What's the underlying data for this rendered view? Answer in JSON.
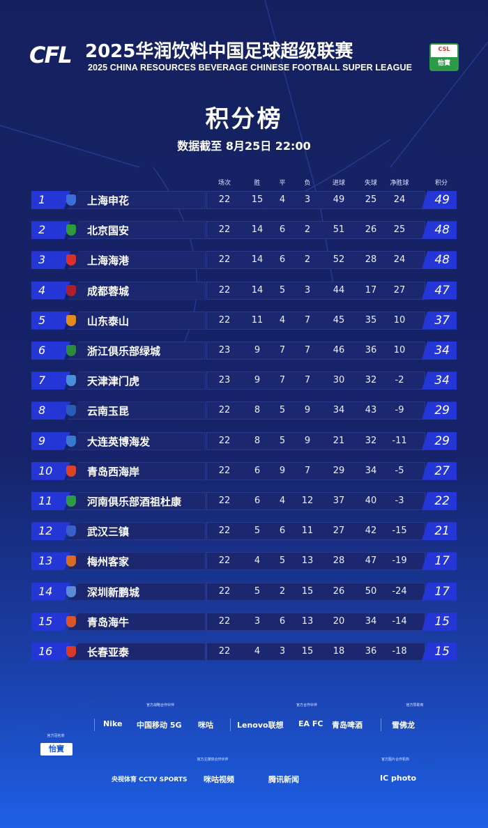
{
  "header": {
    "logo": "CFL",
    "title_cn": "2025华润饮料中国足球超级联赛",
    "title_en": "2025 CHINA RESOURCES BEVERAGE CHINESE FOOTBALL SUPER LEAGUE",
    "csl_badge_top": "CSL",
    "csl_badge_sponsor": "怡寶"
  },
  "page_title": "积分榜",
  "data_as_of": "数据截至 8月25日 22:00",
  "columns": [
    "场次",
    "胜",
    "平",
    "负",
    "进球",
    "失球",
    "净胜球",
    "积分"
  ],
  "colors": {
    "bg_top": "#15215f",
    "bg_bottom": "#1e5fe6",
    "accent": "#2437d6",
    "row": "#1b2870"
  },
  "standings": [
    {
      "rank": "1",
      "team": "上海申花",
      "badge_color": "#3b6fd8",
      "played": "22",
      "w": "15",
      "d": "4",
      "l": "3",
      "gf": "49",
      "ga": "25",
      "gd": "24",
      "pts": "49"
    },
    {
      "rank": "2",
      "team": "北京国安",
      "badge_color": "#2e9a3c",
      "played": "22",
      "w": "14",
      "d": "6",
      "l": "2",
      "gf": "51",
      "ga": "26",
      "gd": "25",
      "pts": "48"
    },
    {
      "rank": "3",
      "team": "上海海港",
      "badge_color": "#d8332a",
      "played": "22",
      "w": "14",
      "d": "6",
      "l": "2",
      "gf": "52",
      "ga": "28",
      "gd": "24",
      "pts": "48"
    },
    {
      "rank": "4",
      "team": "成都蓉城",
      "badge_color": "#b01f2a",
      "played": "22",
      "w": "14",
      "d": "5",
      "l": "3",
      "gf": "44",
      "ga": "17",
      "gd": "27",
      "pts": "47"
    },
    {
      "rank": "5",
      "team": "山东泰山",
      "badge_color": "#e58a1f",
      "played": "22",
      "w": "11",
      "d": "4",
      "l": "7",
      "gf": "45",
      "ga": "35",
      "gd": "10",
      "pts": "37"
    },
    {
      "rank": "6",
      "team": "浙江俱乐部绿城",
      "badge_color": "#2b8a3e",
      "played": "23",
      "w": "9",
      "d": "7",
      "l": "7",
      "gf": "46",
      "ga": "36",
      "gd": "10",
      "pts": "34"
    },
    {
      "rank": "7",
      "team": "天津津门虎",
      "badge_color": "#4a8fd8",
      "played": "23",
      "w": "9",
      "d": "7",
      "l": "7",
      "gf": "30",
      "ga": "32",
      "gd": "-2",
      "pts": "34"
    },
    {
      "rank": "8",
      "team": "云南玉昆",
      "badge_color": "#2a5bb8",
      "played": "22",
      "w": "8",
      "d": "5",
      "l": "9",
      "gf": "34",
      "ga": "43",
      "gd": "-9",
      "pts": "29"
    },
    {
      "rank": "9",
      "team": "大连英博海发",
      "badge_color": "#3a78d0",
      "played": "22",
      "w": "8",
      "d": "5",
      "l": "9",
      "gf": "21",
      "ga": "32",
      "gd": "-11",
      "pts": "29"
    },
    {
      "rank": "10",
      "team": "青岛西海岸",
      "badge_color": "#d8442a",
      "played": "22",
      "w": "6",
      "d": "9",
      "l": "7",
      "gf": "29",
      "ga": "34",
      "gd": "-5",
      "pts": "27"
    },
    {
      "rank": "11",
      "team": "河南俱乐部酒祖杜康",
      "badge_color": "#2f9a48",
      "played": "22",
      "w": "6",
      "d": "4",
      "l": "12",
      "gf": "37",
      "ga": "40",
      "gd": "-3",
      "pts": "22"
    },
    {
      "rank": "12",
      "team": "武汉三镇",
      "badge_color": "#3a5fc8",
      "played": "22",
      "w": "5",
      "d": "6",
      "l": "11",
      "gf": "27",
      "ga": "42",
      "gd": "-15",
      "pts": "21"
    },
    {
      "rank": "13",
      "team": "梅州客家",
      "badge_color": "#d86a2a",
      "played": "22",
      "w": "4",
      "d": "5",
      "l": "13",
      "gf": "28",
      "ga": "47",
      "gd": "-19",
      "pts": "17"
    },
    {
      "rank": "14",
      "team": "深圳新鹏城",
      "badge_color": "#5a8ad8",
      "played": "22",
      "w": "5",
      "d": "2",
      "l": "15",
      "gf": "26",
      "ga": "50",
      "gd": "-24",
      "pts": "17"
    },
    {
      "rank": "15",
      "team": "青岛海牛",
      "badge_color": "#d8562a",
      "played": "22",
      "w": "3",
      "d": "6",
      "l": "13",
      "gf": "20",
      "ga": "34",
      "gd": "-14",
      "pts": "15"
    },
    {
      "rank": "16",
      "team": "长春亚泰",
      "badge_color": "#d83a2a",
      "played": "22",
      "w": "4",
      "d": "3",
      "l": "15",
      "gf": "18",
      "ga": "36",
      "gd": "-18",
      "pts": "15"
    }
  ],
  "sponsors": {
    "title_label": "官方冠名商",
    "title": "怡寶",
    "strategic_label": "官方战略合作伙伴",
    "strategic": [
      "Nike",
      "中国移动 5G",
      "咪咕"
    ],
    "partner_label": "官方合作伙伴",
    "partner": [
      "Lenovo联想",
      "EA FC",
      "青岛啤酒"
    ],
    "supplier_label": "官方赞助商",
    "supplier": [
      "雪佛龙"
    ],
    "media_label": "官方主媒体合作伙伴",
    "media": [
      "央视体育 CCTV SPORTS",
      "咪咕视频",
      "腾讯新闻"
    ],
    "photo_label": "官方图片合作机构",
    "photo": [
      "IC photo"
    ]
  }
}
